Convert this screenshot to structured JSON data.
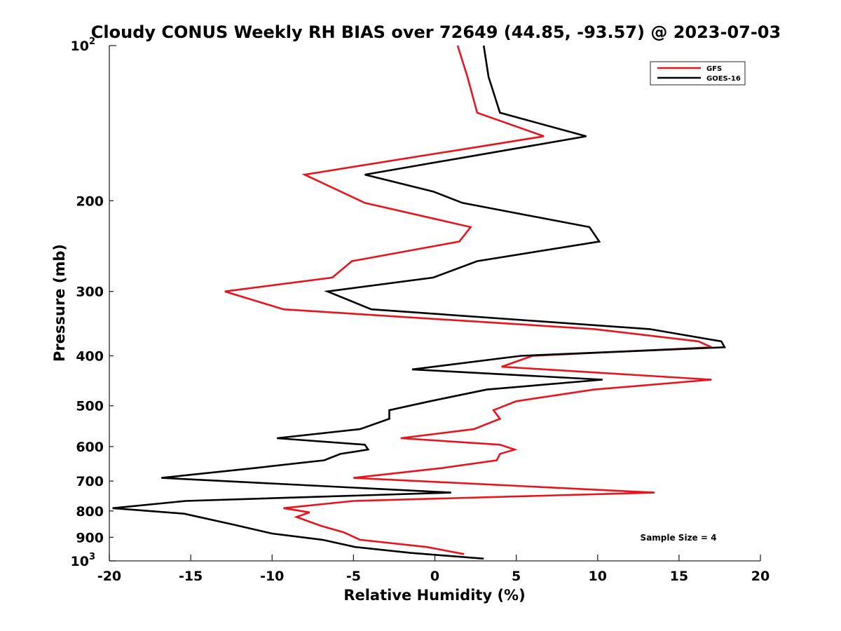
{
  "chart_data": {
    "type": "line",
    "title": "Cloudy CONUS Weekly RH BIAS over 72649 (44.85, -93.57) @ 2023-07-03",
    "xlabel": "Relative Humidity (%)",
    "ylabel": "Pressure (mb)",
    "xlim": [
      -20,
      20
    ],
    "ylim": [
      100,
      1000
    ],
    "y_scale": "log",
    "y_reversed": true,
    "grid": false,
    "legend_position": "top-right",
    "x_ticks": [
      "-20",
      "-15",
      "-10",
      "-5",
      "0",
      "5",
      "10",
      "15",
      "20"
    ],
    "x_tick_values": [
      -20,
      -15,
      -10,
      -5,
      0,
      5,
      10,
      15,
      20
    ],
    "y_ticks": [
      {
        "value": 100,
        "base": "10",
        "exp": "2"
      },
      {
        "value": 200,
        "label": "200"
      },
      {
        "value": 300,
        "label": "300"
      },
      {
        "value": 400,
        "label": "400"
      },
      {
        "value": 500,
        "label": "500"
      },
      {
        "value": 600,
        "label": "600"
      },
      {
        "value": 700,
        "label": "700"
      },
      {
        "value": 800,
        "label": "800"
      },
      {
        "value": 900,
        "label": "900"
      },
      {
        "value": 1000,
        "base": "10",
        "exp": "3"
      }
    ],
    "annotation": "Sample Size = 4",
    "series": [
      {
        "name": "GFS",
        "color": "#e8141c",
        "points": [
          [
            1.4,
            100
          ],
          [
            2.0,
            115
          ],
          [
            2.6,
            135
          ],
          [
            6.7,
            150
          ],
          [
            -8.0,
            178
          ],
          [
            -4.3,
            202
          ],
          [
            2.2,
            225
          ],
          [
            1.5,
            240
          ],
          [
            -5.1,
            262
          ],
          [
            -6.3,
            282
          ],
          [
            -12.9,
            300
          ],
          [
            -9.3,
            325
          ],
          [
            9.8,
            355
          ],
          [
            16.2,
            375
          ],
          [
            17.0,
            385
          ],
          [
            6.0,
            400
          ],
          [
            4.1,
            420
          ],
          [
            17.0,
            445
          ],
          [
            9.8,
            465
          ],
          [
            5.0,
            490
          ],
          [
            3.6,
            510
          ],
          [
            4.0,
            530
          ],
          [
            2.4,
            555
          ],
          [
            -2.1,
            578
          ],
          [
            4.0,
            595
          ],
          [
            4.9,
            608
          ],
          [
            4.0,
            620
          ],
          [
            3.8,
            638
          ],
          [
            0.5,
            660
          ],
          [
            -5.0,
            690
          ],
          [
            13.5,
            737
          ],
          [
            -5.0,
            765
          ],
          [
            -9.3,
            790
          ],
          [
            -7.7,
            805
          ],
          [
            -8.5,
            822
          ],
          [
            -7.0,
            855
          ],
          [
            -5.6,
            880
          ],
          [
            -4.6,
            910
          ],
          [
            -0.5,
            940
          ],
          [
            1.8,
            970
          ]
        ]
      },
      {
        "name": "GOES-16",
        "color": "#000000",
        "points": [
          [
            3.0,
            100
          ],
          [
            3.3,
            115
          ],
          [
            4.0,
            135
          ],
          [
            9.3,
            150
          ],
          [
            -4.3,
            178
          ],
          [
            -0.1,
            192
          ],
          [
            1.7,
            202
          ],
          [
            9.5,
            225
          ],
          [
            10.1,
            240
          ],
          [
            2.6,
            262
          ],
          [
            -0.1,
            282
          ],
          [
            -6.6,
            300
          ],
          [
            -3.9,
            325
          ],
          [
            13.2,
            355
          ],
          [
            17.6,
            375
          ],
          [
            17.8,
            385
          ],
          [
            5.3,
            400
          ],
          [
            -1.4,
            425
          ],
          [
            10.3,
            445
          ],
          [
            3.2,
            465
          ],
          [
            -0.3,
            490
          ],
          [
            -2.8,
            510
          ],
          [
            -2.8,
            530
          ],
          [
            -4.6,
            555
          ],
          [
            -9.7,
            578
          ],
          [
            -4.3,
            595
          ],
          [
            -4.1,
            608
          ],
          [
            -5.8,
            620
          ],
          [
            -6.8,
            638
          ],
          [
            -11.0,
            660
          ],
          [
            -16.8,
            690
          ],
          [
            1.0,
            737
          ],
          [
            -15.3,
            765
          ],
          [
            -19.8,
            790
          ],
          [
            -15.4,
            810
          ],
          [
            -12.4,
            850
          ],
          [
            -10.0,
            885
          ],
          [
            -6.9,
            910
          ],
          [
            -4.9,
            940
          ],
          [
            -1.5,
            965
          ],
          [
            3.0,
            990
          ]
        ]
      }
    ]
  }
}
